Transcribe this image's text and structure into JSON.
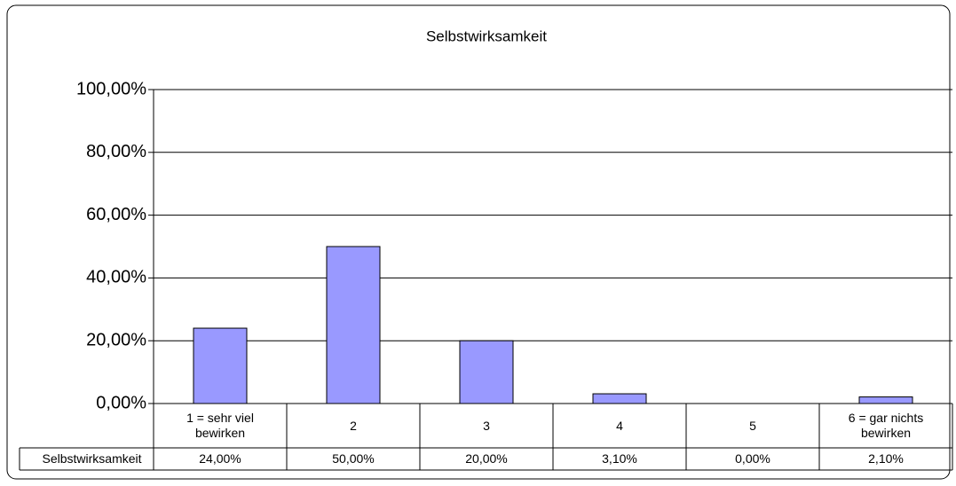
{
  "chart_data": {
    "type": "bar",
    "title": "Selbstwirksamkeit",
    "categories": [
      "1 = sehr viel bewirken",
      "2",
      "3",
      "4",
      "5",
      "6 = gar nichts bewirken"
    ],
    "series": [
      {
        "name": "Selbstwirksamkeit",
        "color": "#9999ff",
        "values": [
          24,
          50,
          20,
          3.1,
          0,
          2.1
        ],
        "value_labels": [
          "24,00%",
          "50,00%",
          "20,00%",
          "3,10%",
          "0,00%",
          "2,10%"
        ]
      }
    ],
    "ylim": [
      0,
      100
    ],
    "yticks": [
      {
        "value": 0,
        "label": "0,00%"
      },
      {
        "value": 20,
        "label": "20,00%"
      },
      {
        "value": 40,
        "label": "40,00%"
      },
      {
        "value": 60,
        "label": "60,00%"
      },
      {
        "value": 80,
        "label": "80,00%"
      },
      {
        "value": 100,
        "label": "100,00%"
      }
    ],
    "grid": true
  }
}
